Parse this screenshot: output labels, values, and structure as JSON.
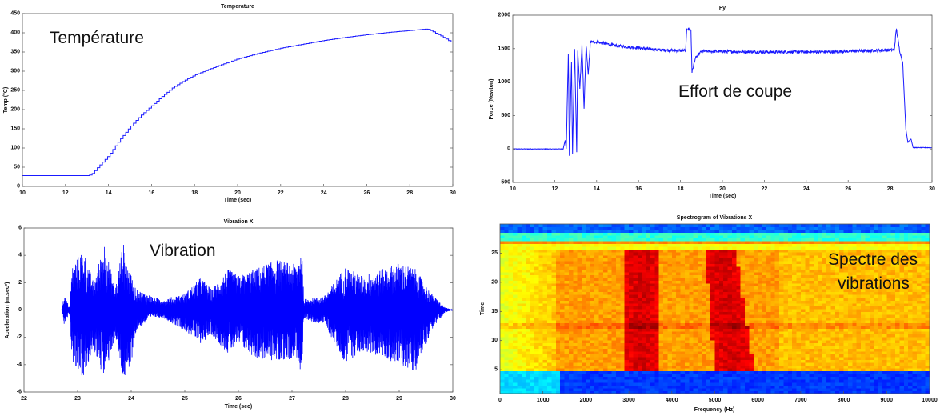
{
  "chart_data": [
    {
      "type": "line",
      "title": "Temperature",
      "annotation": "Température",
      "xlabel": "Time (sec)",
      "ylabel": "Temp (°C)",
      "xlim": [
        10,
        30
      ],
      "ylim": [
        0,
        450
      ],
      "xticks": [
        "10",
        "12",
        "14",
        "16",
        "18",
        "20",
        "22",
        "24",
        "26",
        "28",
        "30"
      ],
      "yticks": [
        "0",
        "50",
        "100",
        "150",
        "200",
        "250",
        "300",
        "350",
        "400",
        "450"
      ],
      "color": "#1a1aff",
      "points": [
        [
          10,
          28
        ],
        [
          13,
          28
        ],
        [
          13.2,
          31
        ],
        [
          13.5,
          50
        ],
        [
          14,
          80
        ],
        [
          14.5,
          120
        ],
        [
          15,
          155
        ],
        [
          15.5,
          185
        ],
        [
          16,
          210
        ],
        [
          16.5,
          235
        ],
        [
          17,
          258
        ],
        [
          17.5,
          275
        ],
        [
          18,
          290
        ],
        [
          19,
          312
        ],
        [
          20,
          332
        ],
        [
          21,
          347
        ],
        [
          22,
          360
        ],
        [
          23,
          370
        ],
        [
          24,
          380
        ],
        [
          25,
          388
        ],
        [
          26,
          395
        ],
        [
          27,
          401
        ],
        [
          28,
          406
        ],
        [
          28.8,
          410
        ],
        [
          29,
          405
        ],
        [
          29.5,
          390
        ],
        [
          30,
          373
        ]
      ]
    },
    {
      "type": "line",
      "title": "Fy",
      "annotation": "Effort de coupe",
      "xlabel": "Time (sec)",
      "ylabel": "Force (Newton)",
      "xlim": [
        10,
        30
      ],
      "ylim": [
        -500,
        2000
      ],
      "xticks": [
        "10",
        "12",
        "14",
        "16",
        "18",
        "20",
        "22",
        "24",
        "26",
        "28",
        "30"
      ],
      "yticks": [
        "-500",
        "0",
        "500",
        "1000",
        "1500",
        "2000"
      ],
      "color": "#1a1aff",
      "points": [
        [
          10,
          0
        ],
        [
          12.4,
          0
        ],
        [
          12.5,
          130
        ],
        [
          12.55,
          0
        ],
        [
          12.65,
          1430
        ],
        [
          12.7,
          -100
        ],
        [
          12.8,
          1300
        ],
        [
          12.85,
          -80
        ],
        [
          12.95,
          1500
        ],
        [
          13.05,
          -50
        ],
        [
          13.1,
          1450
        ],
        [
          13.2,
          900
        ],
        [
          13.3,
          1550
        ],
        [
          13.4,
          600
        ],
        [
          13.5,
          1550
        ],
        [
          13.6,
          1100
        ],
        [
          13.7,
          1600
        ],
        [
          14,
          1600
        ],
        [
          15,
          1540
        ],
        [
          16,
          1510
        ],
        [
          17,
          1480
        ],
        [
          18,
          1470
        ],
        [
          18.25,
          1470
        ],
        [
          18.3,
          1800
        ],
        [
          18.5,
          1780
        ],
        [
          18.55,
          1150
        ],
        [
          18.7,
          1350
        ],
        [
          19,
          1460
        ],
        [
          22,
          1450
        ],
        [
          25,
          1450
        ],
        [
          28,
          1480
        ],
        [
          28.2,
          1480
        ],
        [
          28.3,
          1800
        ],
        [
          28.45,
          1480
        ],
        [
          28.6,
          1300
        ],
        [
          28.75,
          300
        ],
        [
          28.85,
          100
        ],
        [
          29,
          150
        ],
        [
          29.1,
          20
        ],
        [
          30,
          20
        ]
      ]
    },
    {
      "type": "line",
      "title": "Vibration X",
      "annotation": "Vibration",
      "xlabel": "Time (sec)",
      "ylabel": "Acceleration (m.sec²)",
      "xlim": [
        22,
        30
      ],
      "ylim": [
        -6,
        6
      ],
      "xticks": [
        "22",
        "23",
        "24",
        "25",
        "26",
        "27",
        "28",
        "29",
        "30"
      ],
      "yticks": [
        "-6",
        "-4",
        "-2",
        "0",
        "2",
        "4",
        "6"
      ],
      "color": "#0000ff",
      "envelope": [
        [
          22,
          0,
          0
        ],
        [
          22.7,
          0,
          0
        ],
        [
          22.75,
          1.1,
          -1.1
        ],
        [
          22.85,
          0.2,
          -0.2
        ],
        [
          22.9,
          3.2,
          -3.7
        ],
        [
          23.1,
          4.5,
          -5
        ],
        [
          23.3,
          2,
          -3
        ],
        [
          23.5,
          5,
          -5
        ],
        [
          23.7,
          1.5,
          -2
        ],
        [
          23.85,
          5,
          -5.1
        ],
        [
          23.95,
          3,
          -5
        ],
        [
          24.1,
          1.5,
          -1.5
        ],
        [
          24.4,
          1,
          -0.5
        ],
        [
          24.6,
          0.8,
          -0.6
        ],
        [
          25,
          1.2,
          -1.5
        ],
        [
          25.3,
          2.4,
          -2.5
        ],
        [
          25.5,
          1.5,
          -1.8
        ],
        [
          25.8,
          3,
          -3.2
        ],
        [
          26,
          2.5,
          -2.5
        ],
        [
          26.3,
          3,
          -3.5
        ],
        [
          26.7,
          3.7,
          -3.8
        ],
        [
          27.1,
          3.3,
          -3.5
        ],
        [
          27.18,
          5.1,
          -5.1
        ],
        [
          27.22,
          0.8,
          -0.8
        ],
        [
          27.6,
          1,
          -1
        ],
        [
          28,
          3.2,
          -4
        ],
        [
          28.3,
          2.5,
          -3
        ],
        [
          28.7,
          3,
          -3.5
        ],
        [
          29,
          3.5,
          -4
        ],
        [
          29.3,
          3,
          -4.5
        ],
        [
          29.6,
          1.2,
          -1.5
        ],
        [
          29.85,
          0.2,
          -0.2
        ],
        [
          30,
          0,
          0
        ]
      ]
    },
    {
      "type": "heatmap",
      "title": "Spectrogram of Vibrations X",
      "annotation_line1": "Spectre des",
      "annotation_line2": "vibrations",
      "xlabel": "Frequency (Hz)",
      "ylabel": "Time",
      "xlim": [
        0,
        10000
      ],
      "ylim": [
        0.9,
        30
      ],
      "xticks": [
        "0",
        "1000",
        "2000",
        "3000",
        "4000",
        "5000",
        "6000",
        "7000",
        "8000",
        "9000",
        "10000"
      ],
      "yticks": [
        "5",
        "10",
        "15",
        "20",
        "25"
      ],
      "active_time": [
        4.8,
        25.6
      ],
      "background_intensity": 0.72,
      "idle_intensity": 0.18,
      "bands": [
        {
          "freq": [
            2900,
            3700
          ],
          "intensity": 0.92
        },
        {
          "freq_at_t5": [
            5000,
            5900
          ],
          "freq_at_t25": [
            4800,
            5500
          ],
          "intensity": 0.92
        },
        {
          "freq": [
            0,
            1300
          ],
          "intensity": 0.6
        }
      ]
    }
  ]
}
